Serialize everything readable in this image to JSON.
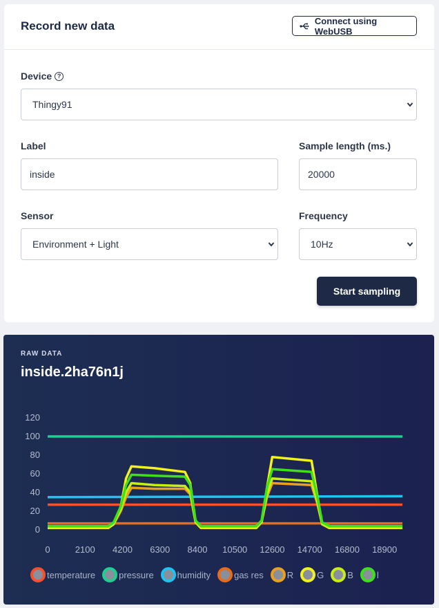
{
  "record": {
    "title": "Record new data",
    "webusb_label": "Connect using WebUSB",
    "device_label": "Device",
    "device_value": "Thingy91",
    "label_label": "Label",
    "label_value": "inside",
    "sample_length_label": "Sample length (ms.)",
    "sample_length_value": "20000",
    "sensor_label": "Sensor",
    "sensor_value": "Environment + Light",
    "frequency_label": "Frequency",
    "frequency_value": "10Hz",
    "start_label": "Start sampling"
  },
  "raw": {
    "kicker": "RAW DATA",
    "title": "inside.2ha76n1j"
  },
  "colors": {
    "primary": "#1e2a45",
    "chart_bg": "#1d2e52"
  },
  "chart_data": {
    "type": "line",
    "ylim": [
      0,
      120
    ],
    "yticks": [
      "0",
      "20",
      "40",
      "60",
      "80",
      "100",
      "120"
    ],
    "xlim": [
      0,
      19900
    ],
    "xticks": [
      "0",
      "2100",
      "4200",
      "6300",
      "8400",
      "10500",
      "12600",
      "14700",
      "16800",
      "18900"
    ],
    "series": [
      {
        "name": "temperature",
        "color": "#f4512c",
        "points": [
          [
            0,
            27
          ],
          [
            19900,
            27
          ]
        ]
      },
      {
        "name": "pressure",
        "color": "#1cd18f",
        "points": [
          [
            0,
            100
          ],
          [
            19900,
            100
          ]
        ]
      },
      {
        "name": "humidity",
        "color": "#1ec4ef",
        "points": [
          [
            0,
            35
          ],
          [
            19900,
            36
          ]
        ]
      },
      {
        "name": "gas res",
        "color": "#e76b18",
        "points": [
          [
            0,
            7
          ],
          [
            19900,
            7
          ]
        ]
      },
      {
        "name": "R",
        "color": "#eaa01c",
        "points": [
          [
            0,
            2
          ],
          [
            3400,
            2
          ],
          [
            3700,
            6
          ],
          [
            4100,
            20
          ],
          [
            4400,
            35
          ],
          [
            4700,
            45
          ],
          [
            6000,
            44
          ],
          [
            7700,
            44
          ],
          [
            8000,
            38
          ],
          [
            8300,
            8
          ],
          [
            8600,
            2
          ],
          [
            11700,
            2
          ],
          [
            12000,
            8
          ],
          [
            12300,
            35
          ],
          [
            12600,
            50
          ],
          [
            14800,
            48
          ],
          [
            15100,
            30
          ],
          [
            15400,
            6
          ],
          [
            15800,
            2
          ],
          [
            19900,
            2
          ]
        ]
      },
      {
        "name": "G",
        "color": "#f1f11b",
        "points": [
          [
            0,
            2
          ],
          [
            3400,
            2
          ],
          [
            3700,
            6
          ],
          [
            4100,
            25
          ],
          [
            4400,
            55
          ],
          [
            4700,
            68
          ],
          [
            6000,
            66
          ],
          [
            7700,
            62
          ],
          [
            8000,
            50
          ],
          [
            8300,
            8
          ],
          [
            8600,
            2
          ],
          [
            11700,
            2
          ],
          [
            12000,
            8
          ],
          [
            12300,
            45
          ],
          [
            12600,
            78
          ],
          [
            14800,
            74
          ],
          [
            15100,
            40
          ],
          [
            15400,
            6
          ],
          [
            15800,
            2
          ],
          [
            19900,
            2
          ]
        ]
      },
      {
        "name": "B",
        "color": "#c8ee14",
        "points": [
          [
            0,
            3
          ],
          [
            3400,
            3
          ],
          [
            3700,
            7
          ],
          [
            4100,
            22
          ],
          [
            4400,
            40
          ],
          [
            4700,
            50
          ],
          [
            6000,
            48
          ],
          [
            7700,
            47
          ],
          [
            8000,
            40
          ],
          [
            8300,
            8
          ],
          [
            8600,
            3
          ],
          [
            11700,
            3
          ],
          [
            12000,
            8
          ],
          [
            12300,
            38
          ],
          [
            12600,
            55
          ],
          [
            14800,
            52
          ],
          [
            15100,
            32
          ],
          [
            15400,
            6
          ],
          [
            15800,
            3
          ],
          [
            19900,
            3
          ]
        ]
      },
      {
        "name": "l",
        "color": "#3ee01c",
        "points": [
          [
            0,
            4
          ],
          [
            3400,
            4
          ],
          [
            3700,
            8
          ],
          [
            4100,
            25
          ],
          [
            4400,
            48
          ],
          [
            4700,
            59
          ],
          [
            6000,
            58
          ],
          [
            7700,
            57
          ],
          [
            8000,
            48
          ],
          [
            8300,
            10
          ],
          [
            8600,
            4
          ],
          [
            11700,
            4
          ],
          [
            12000,
            10
          ],
          [
            12300,
            45
          ],
          [
            12600,
            65
          ],
          [
            14800,
            62
          ],
          [
            15100,
            38
          ],
          [
            15400,
            8
          ],
          [
            15800,
            4
          ],
          [
            19900,
            4
          ]
        ]
      }
    ]
  }
}
